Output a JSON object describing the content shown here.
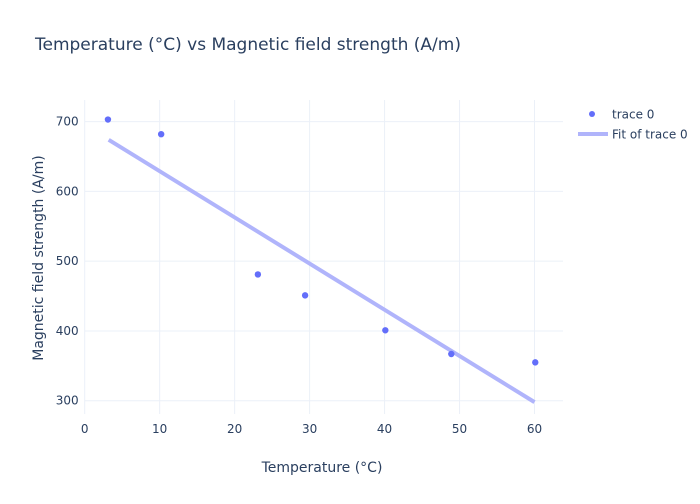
{
  "chart_data": {
    "type": "scatter",
    "title": "Temperature (°C) vs Magnetic field strength (A/m)",
    "xlabel": "Temperature (°C)",
    "ylabel": "Magnetic field strength (A/m)",
    "xlim": [
      0,
      63.8
    ],
    "ylim": [
      281,
      731
    ],
    "xticks": [
      0,
      10,
      20,
      30,
      40,
      50,
      60
    ],
    "yticks": [
      300,
      400,
      500,
      600,
      700
    ],
    "grid": true,
    "legend_position": "top-right",
    "series": [
      {
        "name": "trace 0",
        "mode": "markers",
        "color": "#636efa",
        "x": [
          3.1,
          10.2,
          23.1,
          29.4,
          40.1,
          48.9,
          60.1
        ],
        "y": [
          703,
          682,
          481,
          451,
          401,
          367,
          355
        ]
      },
      {
        "name": "Fit of trace 0",
        "mode": "lines",
        "color": "#b0b4fb",
        "x": [
          3.2,
          60.0
        ],
        "y": [
          674,
          298
        ]
      }
    ]
  }
}
